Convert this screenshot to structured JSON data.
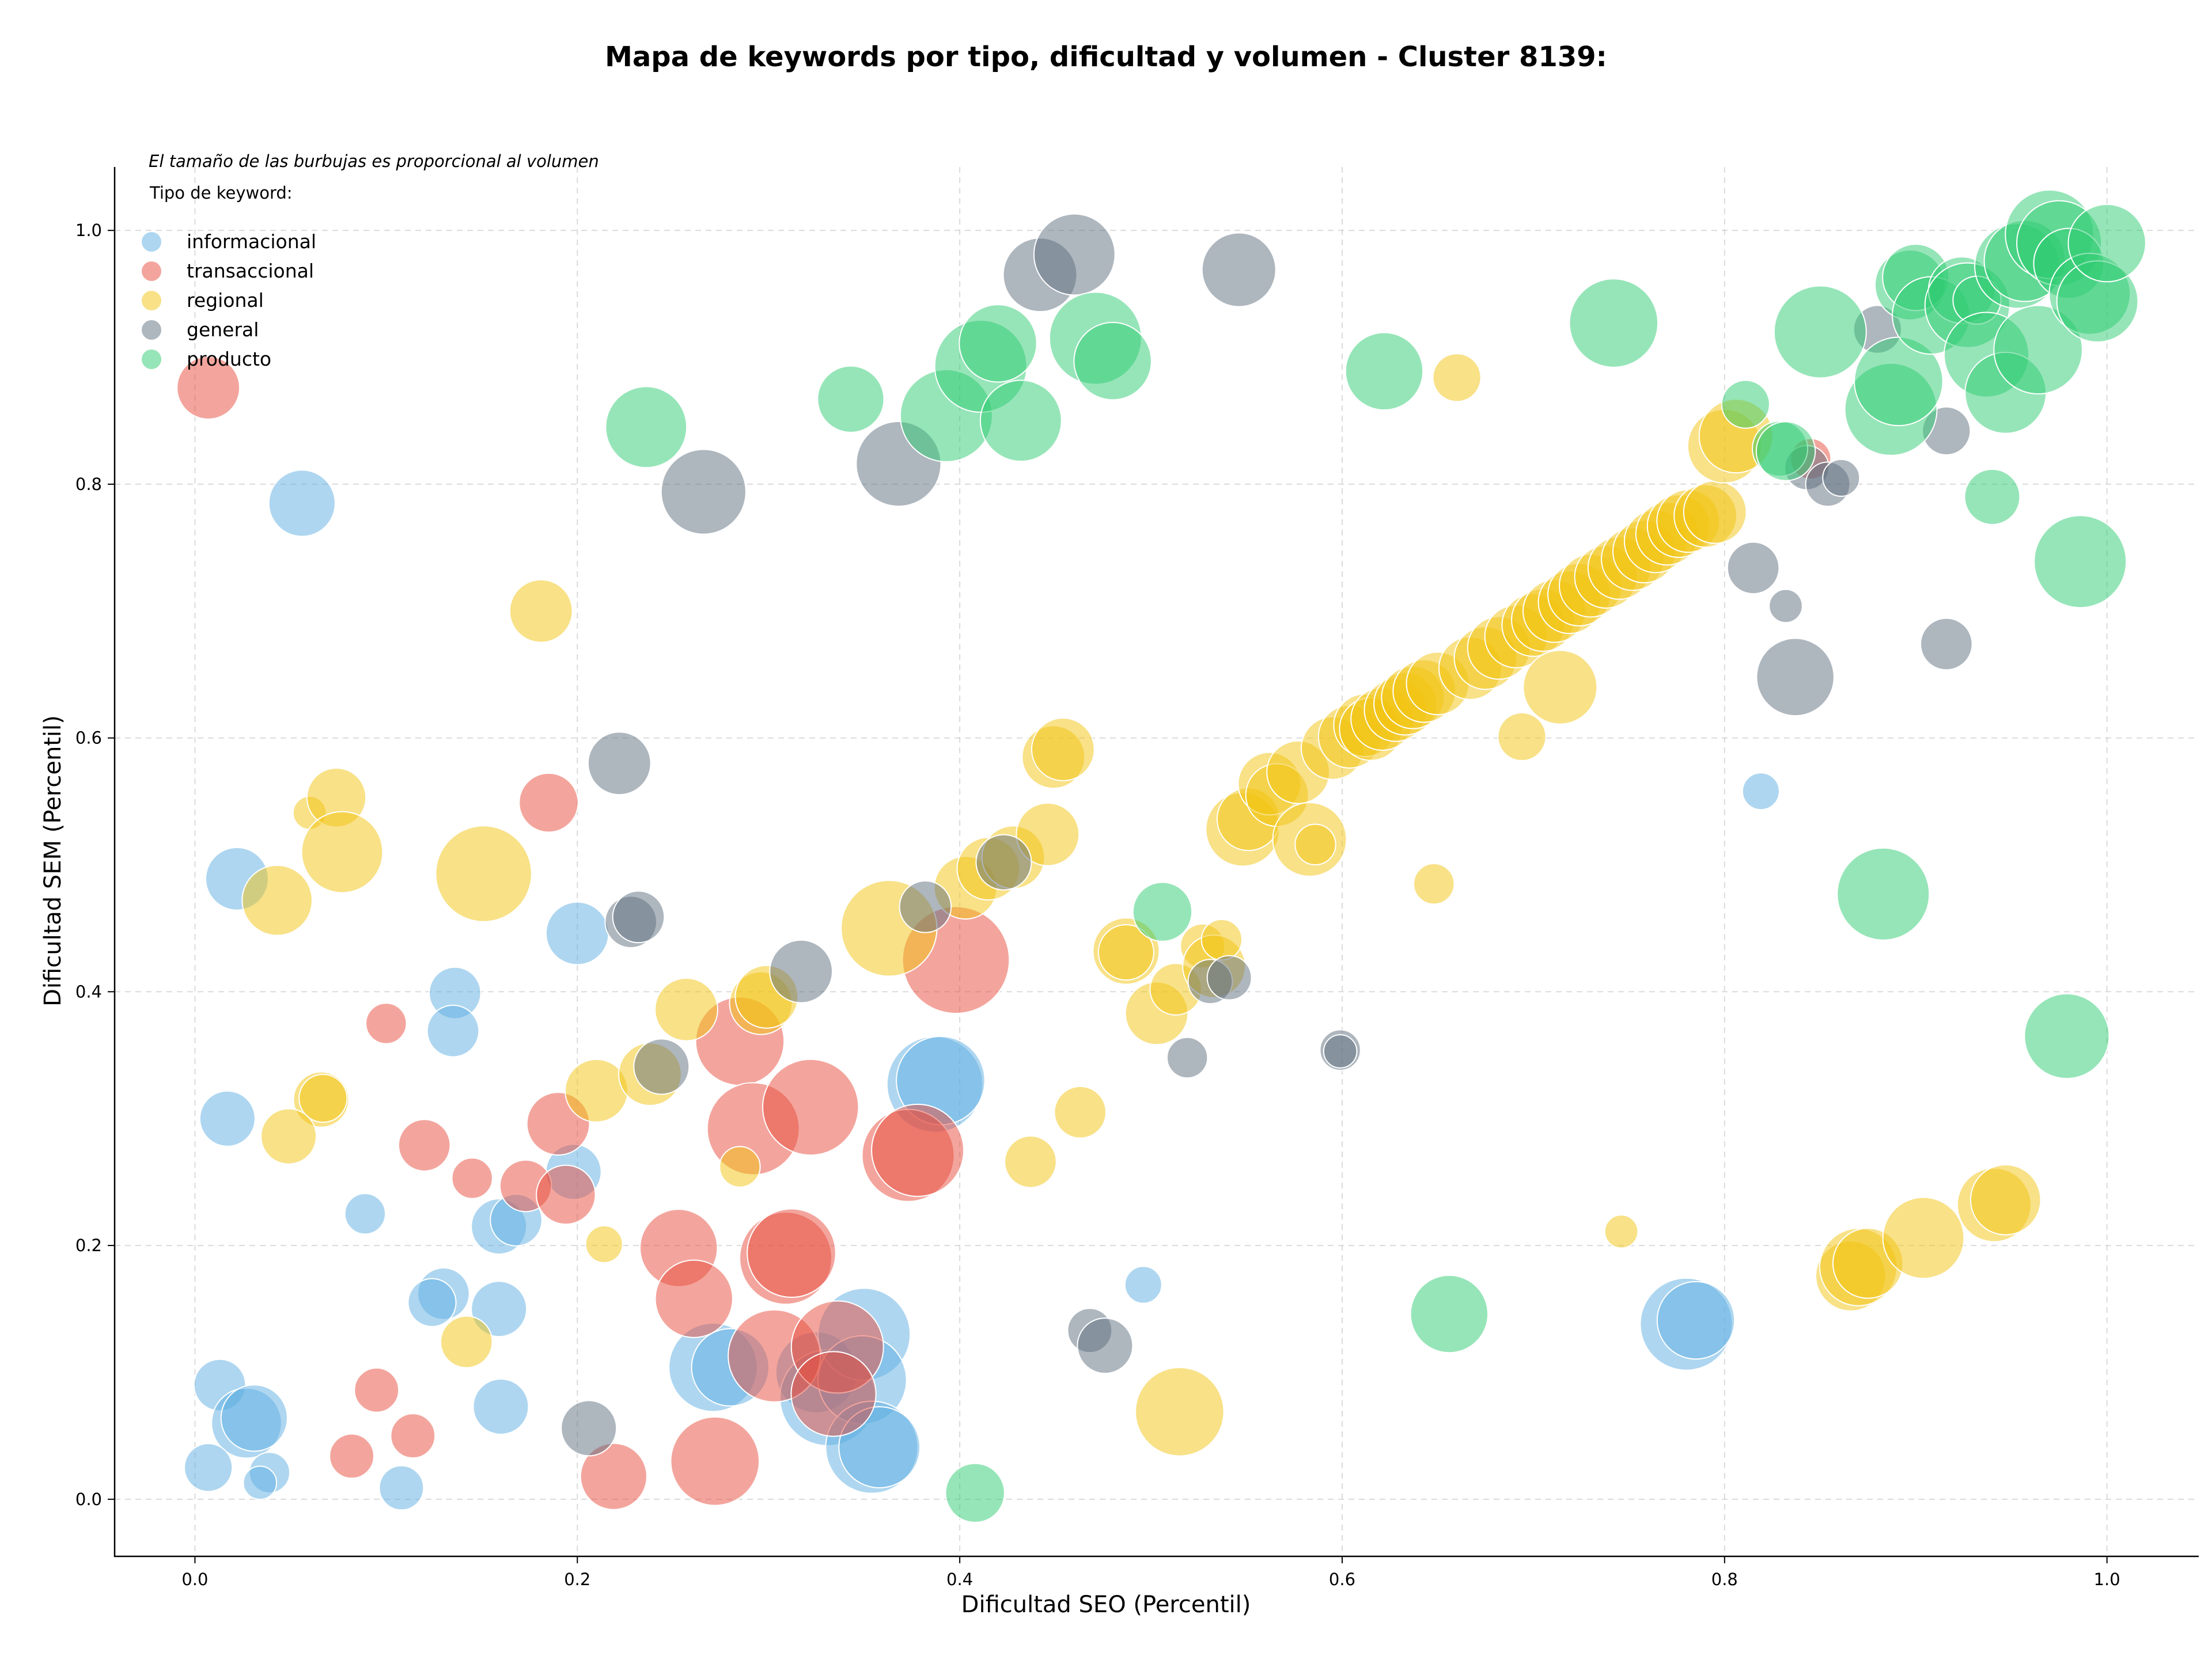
{
  "chart_data": {
    "type": "scatter",
    "title": "Mapa de keywords por tipo, dificultad y volumen - Cluster 8139:",
    "xlabel": "Dificultad SEO (Percentil)",
    "ylabel": "Dificultad SEM (Percentil)",
    "xlim": [
      -0.042,
      1.048
    ],
    "ylim": [
      -0.045,
      1.05
    ],
    "xticks": [
      0.0,
      0.2,
      0.4,
      0.6,
      0.8,
      1.0
    ],
    "yticks": [
      0.0,
      0.2,
      0.4,
      0.6,
      0.8,
      1.0
    ],
    "xtick_labels": [
      "0.0",
      "0.2",
      "0.4",
      "0.6",
      "0.8",
      "1.0"
    ],
    "ytick_labels": [
      "0.0",
      "0.2",
      "0.4",
      "0.6",
      "0.8",
      "1.0"
    ],
    "grid": true,
    "legend_placement": "top-left",
    "legend_note": "El tamaño de las burbujas es proporcional al volumen",
    "legend_title": "Tipo de keyword:",
    "series": [
      {
        "name": "informacional",
        "color": "#5DADE2",
        "points": [
          [
            0.056,
            0.785,
            18
          ],
          [
            0.022,
            0.489,
            17
          ],
          [
            0.2,
            0.446,
            17
          ],
          [
            0.136,
            0.399,
            14
          ],
          [
            0.135,
            0.369,
            14
          ],
          [
            0.017,
            0.3,
            15
          ],
          [
            0.198,
            0.258,
            15
          ],
          [
            0.159,
            0.215,
            15
          ],
          [
            0.168,
            0.22,
            14
          ],
          [
            0.089,
            0.225,
            11
          ],
          [
            0.13,
            0.162,
            14
          ],
          [
            0.124,
            0.155,
            13
          ],
          [
            0.159,
            0.15,
            15
          ],
          [
            0.013,
            0.09,
            14
          ],
          [
            0.027,
            0.06,
            19
          ],
          [
            0.031,
            0.064,
            18
          ],
          [
            0.16,
            0.073,
            15
          ],
          [
            0.007,
            0.025,
            13
          ],
          [
            0.039,
            0.021,
            11
          ],
          [
            0.034,
            0.013,
            9
          ],
          [
            0.108,
            0.009,
            12
          ],
          [
            0.271,
            0.104,
            24
          ],
          [
            0.28,
            0.104,
            21
          ],
          [
            0.325,
            0.1,
            22
          ],
          [
            0.331,
            0.08,
            26
          ],
          [
            0.35,
            0.13,
            25
          ],
          [
            0.349,
            0.094,
            24
          ],
          [
            0.354,
            0.041,
            25
          ],
          [
            0.358,
            0.041,
            22
          ],
          [
            0.387,
            0.327,
            26
          ],
          [
            0.39,
            0.33,
            24
          ],
          [
            0.496,
            0.169,
            10
          ],
          [
            0.78,
            0.138,
            25
          ],
          [
            0.785,
            0.141,
            21
          ],
          [
            0.819,
            0.558,
            10
          ]
        ]
      },
      {
        "name": "transaccional",
        "color": "#E74C3C",
        "points": [
          [
            0.007,
            0.876,
            17
          ],
          [
            0.185,
            0.549,
            16
          ],
          [
            0.1,
            0.375,
            11
          ],
          [
            0.12,
            0.279,
            14
          ],
          [
            0.145,
            0.253,
            11
          ],
          [
            0.19,
            0.296,
            17
          ],
          [
            0.173,
            0.247,
            14
          ],
          [
            0.194,
            0.24,
            16
          ],
          [
            0.095,
            0.086,
            12
          ],
          [
            0.082,
            0.034,
            12
          ],
          [
            0.114,
            0.05,
            12
          ],
          [
            0.219,
            0.018,
            18
          ],
          [
            0.253,
            0.198,
            21
          ],
          [
            0.261,
            0.158,
            21
          ],
          [
            0.272,
            0.03,
            24
          ],
          [
            0.285,
            0.361,
            24
          ],
          [
            0.292,
            0.292,
            25
          ],
          [
            0.303,
            0.113,
            25
          ],
          [
            0.309,
            0.19,
            25
          ],
          [
            0.312,
            0.194,
            24
          ],
          [
            0.322,
            0.309,
            26
          ],
          [
            0.336,
            0.12,
            25
          ],
          [
            0.334,
            0.083,
            23
          ],
          [
            0.373,
            0.271,
            25
          ],
          [
            0.378,
            0.275,
            25
          ],
          [
            0.398,
            0.425,
            29
          ],
          [
            0.845,
            0.82,
            11
          ]
        ]
      },
      {
        "name": "regional",
        "color": "#F1C40F",
        "points": [
          [
            0.181,
            0.7,
            17
          ],
          [
            0.06,
            0.541,
            9
          ],
          [
            0.074,
            0.553,
            16
          ],
          [
            0.077,
            0.51,
            22
          ],
          [
            0.043,
            0.472,
            19
          ],
          [
            0.151,
            0.493,
            26
          ],
          [
            0.066,
            0.315,
            15
          ],
          [
            0.067,
            0.316,
            13
          ],
          [
            0.049,
            0.286,
            15
          ],
          [
            0.214,
            0.201,
            10
          ],
          [
            0.142,
            0.124,
            14
          ],
          [
            0.21,
            0.322,
            17
          ],
          [
            0.238,
            0.335,
            17
          ],
          [
            0.257,
            0.386,
            17
          ],
          [
            0.296,
            0.391,
            17
          ],
          [
            0.299,
            0.396,
            17
          ],
          [
            0.285,
            0.262,
            11
          ],
          [
            0.363,
            0.45,
            26
          ],
          [
            0.403,
            0.482,
            17
          ],
          [
            0.415,
            0.497,
            17
          ],
          [
            0.428,
            0.506,
            17
          ],
          [
            0.446,
            0.524,
            17
          ],
          [
            0.449,
            0.585,
            17
          ],
          [
            0.454,
            0.591,
            17
          ],
          [
            0.437,
            0.266,
            14
          ],
          [
            0.463,
            0.305,
            14
          ],
          [
            0.487,
            0.432,
            18
          ],
          [
            0.487,
            0.431,
            15
          ],
          [
            0.503,
            0.383,
            17
          ],
          [
            0.513,
            0.402,
            14
          ],
          [
            0.527,
            0.436,
            12
          ],
          [
            0.533,
            0.42,
            17
          ],
          [
            0.537,
            0.441,
            11
          ],
          [
            0.515,
            0.069,
            24
          ],
          [
            0.548,
            0.528,
            20
          ],
          [
            0.551,
            0.536,
            17
          ],
          [
            0.562,
            0.564,
            17
          ],
          [
            0.566,
            0.555,
            17
          ],
          [
            0.577,
            0.573,
            17
          ],
          [
            0.583,
            0.52,
            20
          ],
          [
            0.586,
            0.516,
            11
          ],
          [
            0.595,
            0.592,
            17
          ],
          [
            0.604,
            0.601,
            17
          ],
          [
            0.612,
            0.61,
            17
          ],
          [
            0.615,
            0.607,
            17
          ],
          [
            0.621,
            0.615,
            17
          ],
          [
            0.628,
            0.622,
            17
          ],
          [
            0.633,
            0.627,
            17
          ],
          [
            0.637,
            0.632,
            17
          ],
          [
            0.643,
            0.637,
            17
          ],
          [
            0.65,
            0.643,
            17
          ],
          [
            0.648,
            0.485,
            11
          ],
          [
            0.66,
            0.884,
            13
          ],
          [
            0.667,
            0.655,
            17
          ],
          [
            0.675,
            0.663,
            17
          ],
          [
            0.682,
            0.671,
            17
          ],
          [
            0.691,
            0.68,
            17
          ],
          [
            0.694,
            0.601,
            13
          ],
          [
            0.7,
            0.689,
            17
          ],
          [
            0.705,
            0.693,
            17
          ],
          [
            0.711,
            0.7,
            17
          ],
          [
            0.714,
            0.64,
            20
          ],
          [
            0.719,
            0.707,
            17
          ],
          [
            0.724,
            0.713,
            17
          ],
          [
            0.73,
            0.72,
            17
          ],
          [
            0.738,
            0.727,
            17
          ],
          [
            0.745,
            0.734,
            17
          ],
          [
            0.746,
            0.211,
            9
          ],
          [
            0.752,
            0.741,
            17
          ],
          [
            0.758,
            0.747,
            17
          ],
          [
            0.764,
            0.755,
            17
          ],
          [
            0.77,
            0.761,
            17
          ],
          [
            0.776,
            0.767,
            17
          ],
          [
            0.781,
            0.771,
            17
          ],
          [
            0.79,
            0.775,
            17
          ],
          [
            0.795,
            0.778,
            17
          ],
          [
            0.8,
            0.83,
            20
          ],
          [
            0.806,
            0.838,
            20
          ],
          [
            0.866,
            0.176,
            19
          ],
          [
            0.87,
            0.183,
            21
          ],
          [
            0.875,
            0.186,
            19
          ],
          [
            0.904,
            0.206,
            22
          ],
          [
            0.941,
            0.232,
            20
          ],
          [
            0.947,
            0.236,
            19
          ]
        ]
      },
      {
        "name": "general",
        "color": "#5D6D7E",
        "points": [
          [
            0.222,
            0.58,
            17
          ],
          [
            0.228,
            0.455,
            14
          ],
          [
            0.232,
            0.459,
            14
          ],
          [
            0.266,
            0.794,
            23
          ],
          [
            0.244,
            0.341,
            15
          ],
          [
            0.317,
            0.416,
            17
          ],
          [
            0.206,
            0.056,
            15
          ],
          [
            0.368,
            0.816,
            23
          ],
          [
            0.382,
            0.467,
            14
          ],
          [
            0.423,
            0.502,
            15
          ],
          [
            0.442,
            0.965,
            20
          ],
          [
            0.46,
            0.981,
            22
          ],
          [
            0.468,
            0.133,
            12
          ],
          [
            0.476,
            0.121,
            15
          ],
          [
            0.519,
            0.348,
            11
          ],
          [
            0.531,
            0.408,
            12
          ],
          [
            0.541,
            0.411,
            12
          ],
          [
            0.546,
            0.969,
            20
          ],
          [
            0.599,
            0.354,
            11
          ],
          [
            0.599,
            0.353,
            9
          ],
          [
            0.815,
            0.734,
            14
          ],
          [
            0.832,
            0.704,
            9
          ],
          [
            0.837,
            0.648,
            21
          ],
          [
            0.843,
            0.813,
            12
          ],
          [
            0.854,
            0.8,
            12
          ],
          [
            0.861,
            0.805,
            10
          ],
          [
            0.88,
            0.922,
            13
          ],
          [
            0.916,
            0.842,
            13
          ],
          [
            0.916,
            0.674,
            14
          ]
        ]
      },
      {
        "name": "producto",
        "color": "#2ECC71",
        "points": [
          [
            0.236,
            0.845,
            22
          ],
          [
            0.343,
            0.867,
            18
          ],
          [
            0.393,
            0.854,
            25
          ],
          [
            0.411,
            0.893,
            25
          ],
          [
            0.42,
            0.911,
            21
          ],
          [
            0.432,
            0.85,
            22
          ],
          [
            0.471,
            0.915,
            25
          ],
          [
            0.48,
            0.897,
            21
          ],
          [
            0.506,
            0.463,
            16
          ],
          [
            0.408,
            0.005,
            16
          ],
          [
            0.622,
            0.889,
            21
          ],
          [
            0.656,
            0.146,
            21
          ],
          [
            0.742,
            0.927,
            24
          ],
          [
            0.811,
            0.863,
            13
          ],
          [
            0.829,
            0.828,
            15
          ],
          [
            0.832,
            0.826,
            16
          ],
          [
            0.85,
            0.92,
            25
          ],
          [
            0.883,
            0.477,
            25
          ],
          [
            0.887,
            0.859,
            25
          ],
          [
            0.891,
            0.881,
            24
          ],
          [
            0.897,
            0.957,
            19
          ],
          [
            0.9,
            0.963,
            18
          ],
          [
            0.908,
            0.933,
            21
          ],
          [
            0.924,
            0.953,
            18
          ],
          [
            0.927,
            0.941,
            23
          ],
          [
            0.932,
            0.945,
            13
          ],
          [
            0.937,
            0.902,
            23
          ],
          [
            0.94,
            0.79,
            15
          ],
          [
            0.947,
            0.872,
            22
          ],
          [
            0.953,
            0.972,
            23
          ],
          [
            0.957,
            0.976,
            22
          ],
          [
            0.964,
            0.906,
            24
          ],
          [
            0.97,
            0.997,
            24
          ],
          [
            0.975,
            0.99,
            23
          ],
          [
            0.98,
            0.974,
            19
          ],
          [
            0.986,
            0.739,
            25
          ],
          [
            0.979,
            0.365,
            23
          ],
          [
            0.991,
            0.95,
            22
          ],
          [
            0.995,
            0.944,
            22
          ],
          [
            1.0,
            0.99,
            21
          ]
        ]
      }
    ]
  }
}
